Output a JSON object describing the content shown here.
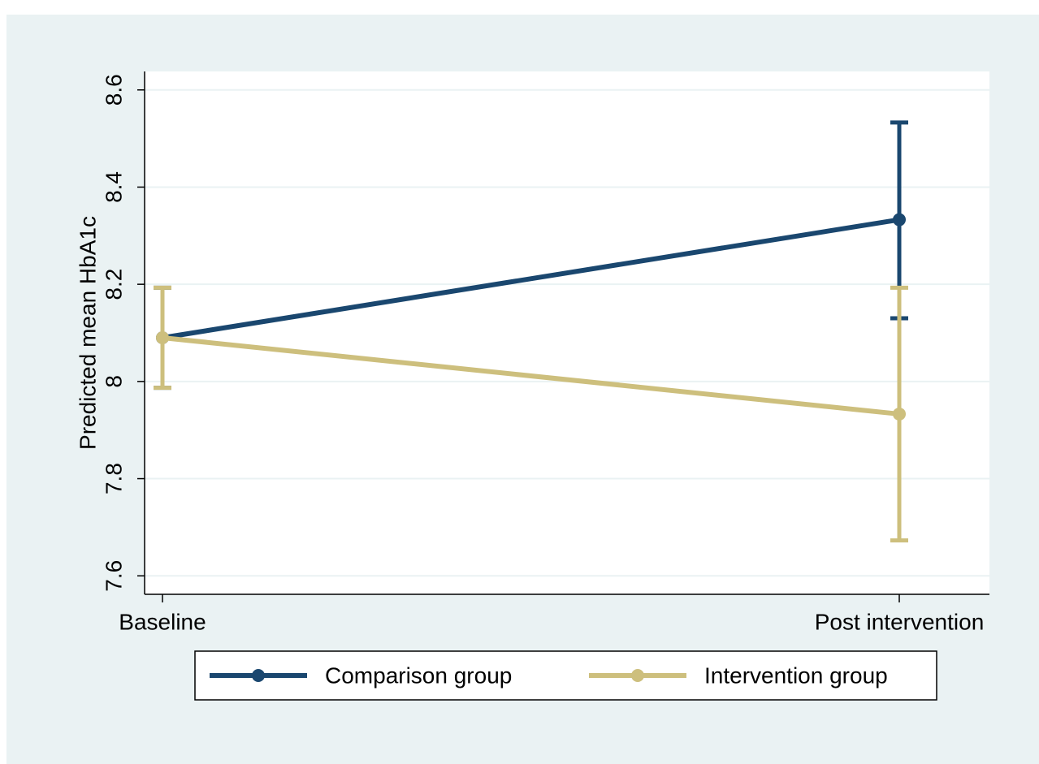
{
  "chart_data": {
    "type": "line",
    "y_label": "Predicted mean HbA1c",
    "categories": [
      "Baseline",
      "Post intervention"
    ],
    "series": [
      {
        "name": "Comparison group",
        "color": "#1a476f",
        "values": [
          8.09,
          8.333
        ],
        "lower": [
          7.987,
          8.13
        ],
        "upper": [
          8.193,
          8.533
        ]
      },
      {
        "name": "Intervention group",
        "color": "#cdbf7d",
        "values": [
          8.09,
          7.933
        ],
        "lower": [
          7.987,
          7.673
        ],
        "upper": [
          8.193,
          8.193
        ]
      }
    ],
    "ylim": [
      7.562,
      8.638
    ],
    "yticks": [
      {
        "value": 7.6,
        "label": "7.6"
      },
      {
        "value": 7.8,
        "label": "7.8"
      },
      8,
      {
        "value": 8.2,
        "label": "8.2"
      },
      {
        "value": 8.4,
        "label": "8.4"
      },
      {
        "value": 8.6,
        "label": "8.6"
      }
    ],
    "grid": true,
    "legend": "bottom"
  }
}
